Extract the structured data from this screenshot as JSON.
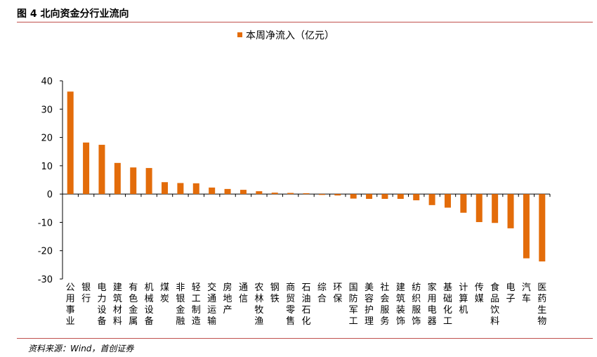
{
  "figure": {
    "title": "图 4 北向资金分行业流向",
    "source": "资料来源：Wind，首创证券"
  },
  "chart_data": {
    "type": "bar",
    "legend": {
      "label": "本周净流入（亿元）",
      "placement": "top-center"
    },
    "color": "#e36c0a",
    "ylim": [
      -30,
      40
    ],
    "yticks": [
      40,
      30,
      20,
      10,
      0,
      -10,
      -20,
      -30
    ],
    "grid": false,
    "categories": [
      "公用事业",
      "银行",
      "电力设备",
      "建筑材料",
      "有色金属",
      "机械设备",
      "煤炭",
      "非银金融",
      "轻工制造",
      "交通运输",
      "房地产",
      "通信",
      "农林牧渔",
      "钢铁",
      "商贸零售",
      "石油石化",
      "综合",
      "环保",
      "国防军工",
      "美容护理",
      "社会服务",
      "建筑装饰",
      "纺织服饰",
      "家用电器",
      "基础化工",
      "计算机",
      "传媒",
      "食品饮料",
      "电子",
      "汽车",
      "医药生物"
    ],
    "values": [
      36.2,
      18.2,
      17.4,
      11.0,
      9.4,
      9.2,
      4.2,
      3.9,
      3.8,
      2.3,
      1.8,
      1.5,
      1.0,
      0.5,
      0.4,
      0.3,
      -0.3,
      -0.5,
      -1.6,
      -1.7,
      -1.7,
      -1.7,
      -2.2,
      -3.9,
      -4.8,
      -6.6,
      -9.9,
      -10.2,
      -12.1,
      -22.7,
      -23.8
    ]
  }
}
